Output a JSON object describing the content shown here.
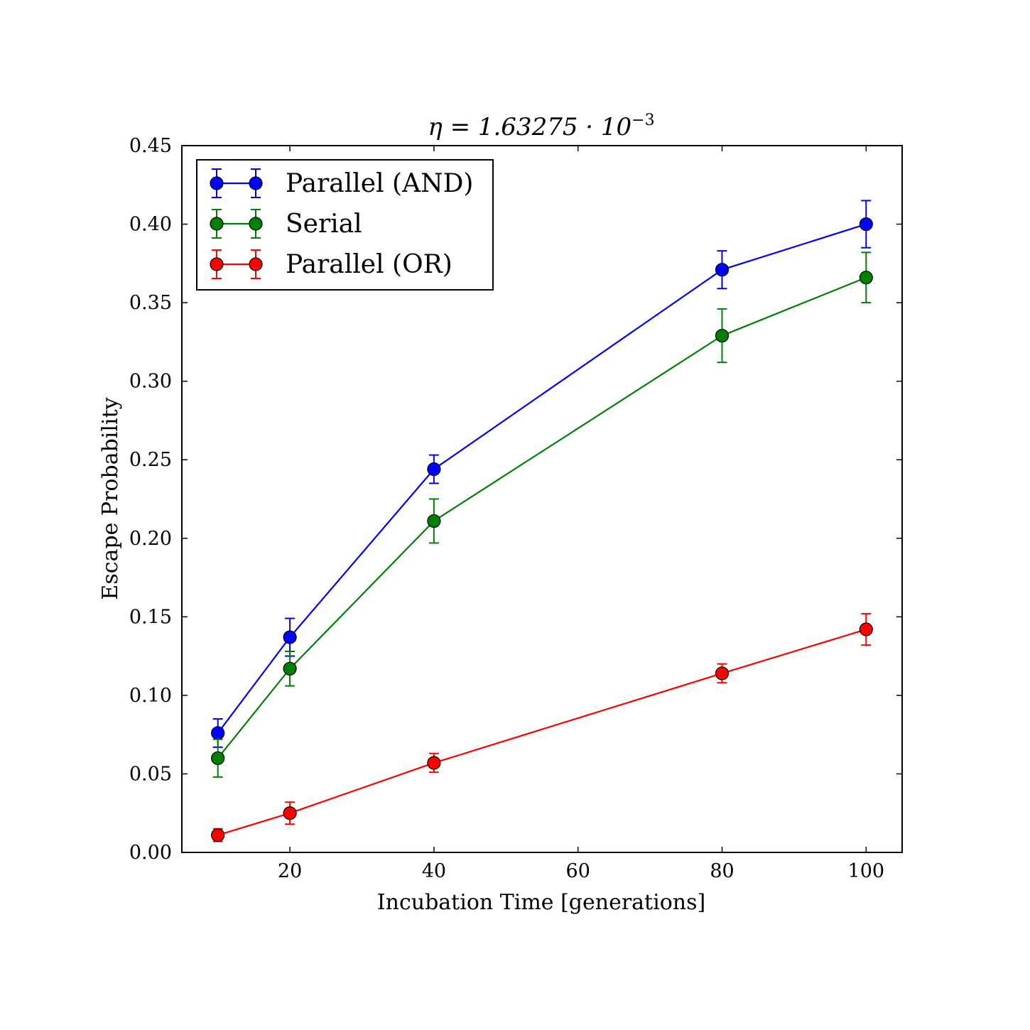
{
  "chart_data": {
    "type": "line",
    "title_parts": {
      "base": "η = 1.63275 · 10",
      "exponent": "−3"
    },
    "xlabel": "Incubation Time [generations]",
    "ylabel": "Escape Probability",
    "xlim": [
      5,
      105
    ],
    "ylim": [
      0,
      0.45
    ],
    "xticks": [
      20,
      40,
      60,
      80,
      100
    ],
    "xtick_labels": [
      "20",
      "40",
      "60",
      "80",
      "100"
    ],
    "yticks": [
      0,
      0.05,
      0.1,
      0.15,
      0.2,
      0.25,
      0.3,
      0.35,
      0.4,
      0.45
    ],
    "ytick_labels": [
      "0.00",
      "0.05",
      "0.10",
      "0.15",
      "0.20",
      "0.25",
      "0.30",
      "0.35",
      "0.40",
      "0.45"
    ],
    "grid": false,
    "legend_position": "top-left",
    "x": [
      10,
      20,
      40,
      80,
      100
    ],
    "series": [
      {
        "name": "Parallel (AND)",
        "color": "#0000ff",
        "values": [
          0.076,
          0.137,
          0.244,
          0.371,
          0.4
        ],
        "errors": [
          0.009,
          0.012,
          0.009,
          0.012,
          0.015
        ]
      },
      {
        "name": "Serial",
        "color": "#008000",
        "values": [
          0.06,
          0.117,
          0.211,
          0.329,
          0.366
        ],
        "errors": [
          0.012,
          0.011,
          0.014,
          0.017,
          0.016
        ]
      },
      {
        "name": "Parallel (OR)",
        "color": "#ff0000",
        "values": [
          0.011,
          0.025,
          0.057,
          0.114,
          0.142
        ],
        "errors": [
          0.004,
          0.007,
          0.006,
          0.006,
          0.01
        ]
      }
    ]
  }
}
